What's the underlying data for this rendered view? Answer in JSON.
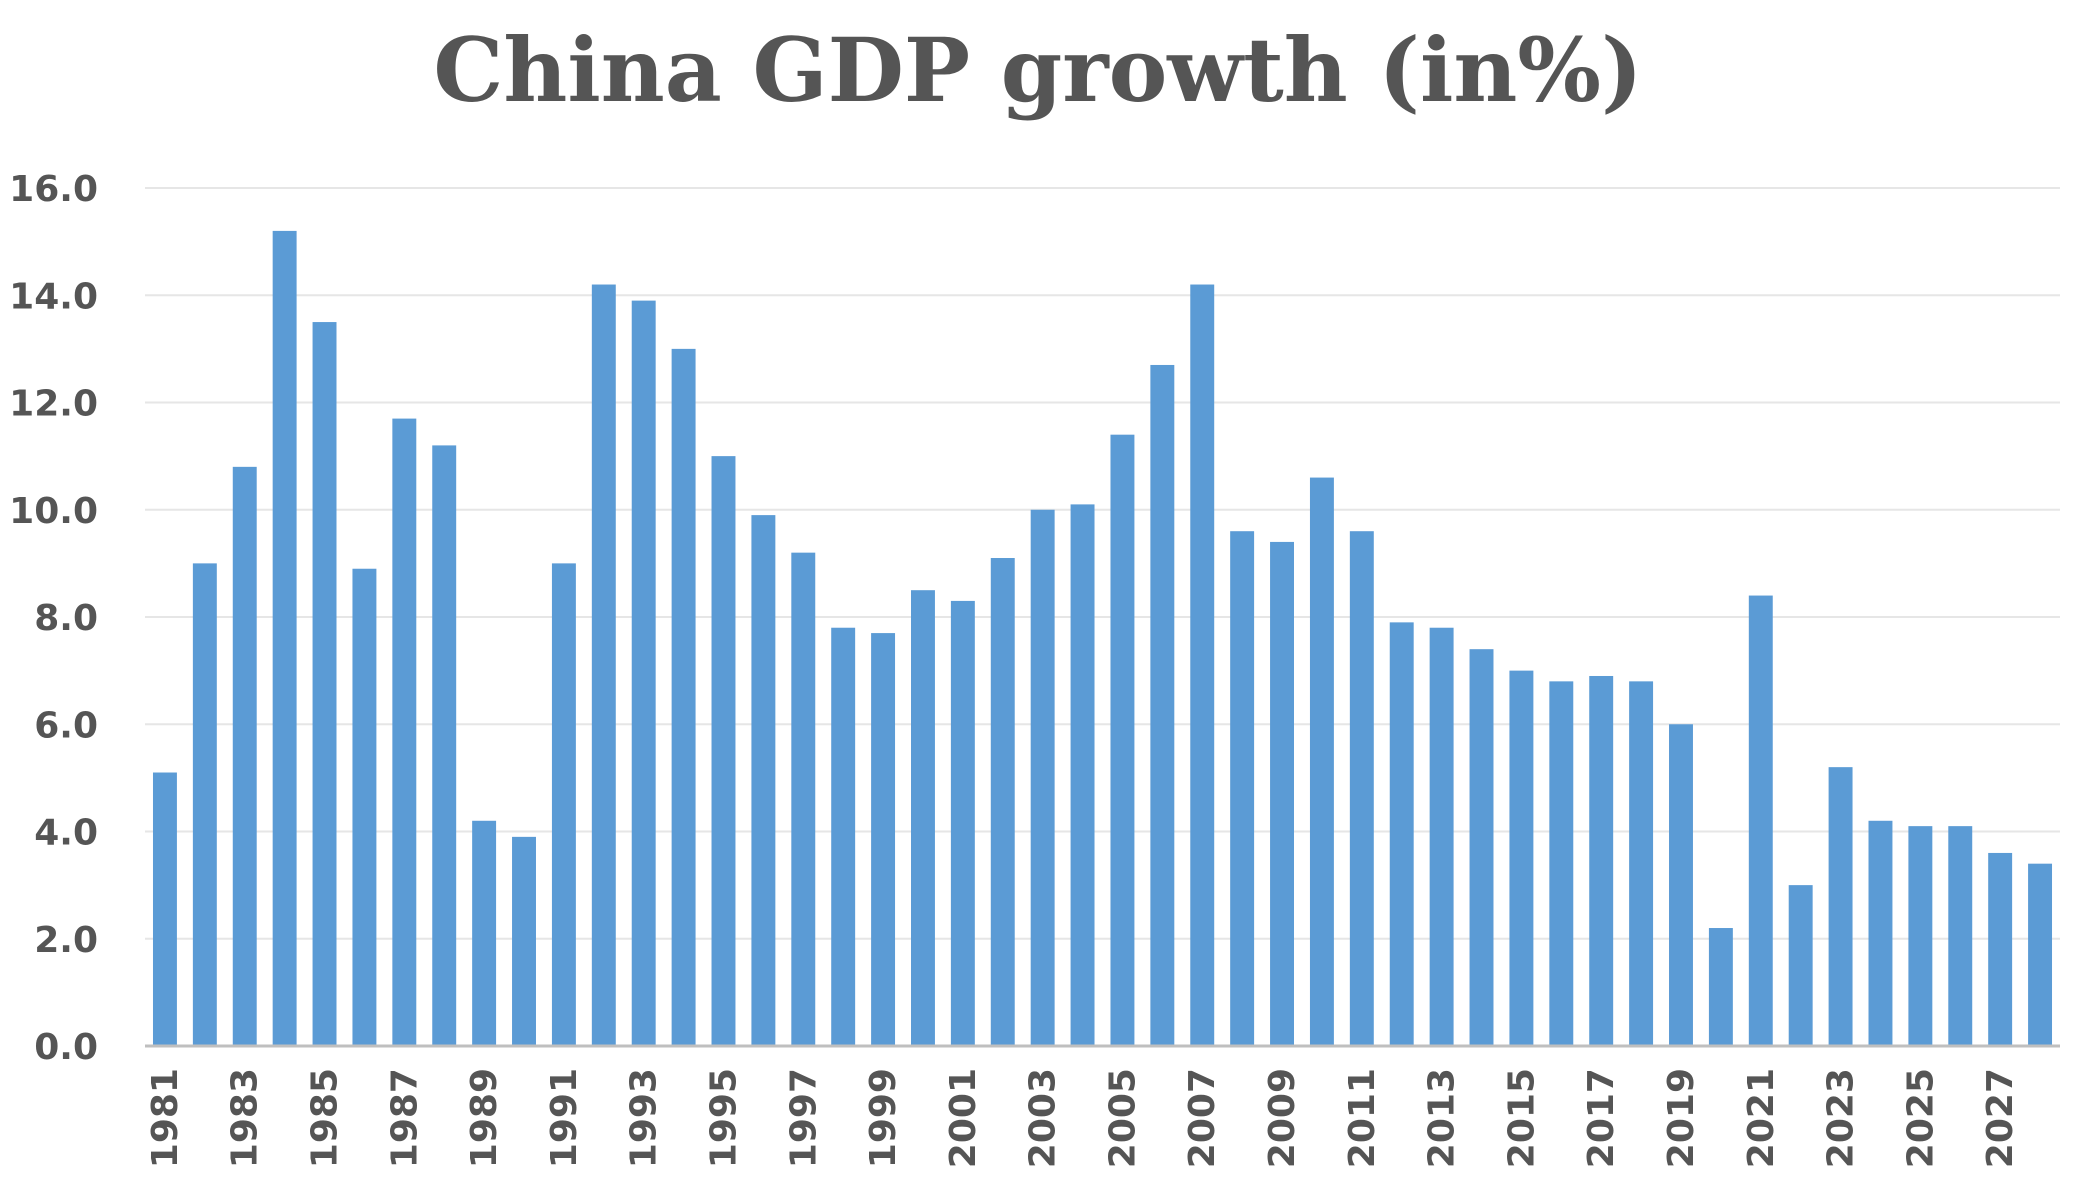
{
  "chart_data": {
    "type": "bar",
    "title": "China GDP growth (in%)",
    "xlabel": "",
    "ylabel": "",
    "ylim": [
      0,
      16
    ],
    "yticks": [
      "0.0",
      "2.0",
      "4.0",
      "6.0",
      "8.0",
      "10.0",
      "12.0",
      "14.0",
      "16.0"
    ],
    "grid": true,
    "bar_color": "#5B9BD5",
    "categories": [
      "1981",
      "1982",
      "1983",
      "1984",
      "1985",
      "1986",
      "1987",
      "1988",
      "1989",
      "1990",
      "1991",
      "1992",
      "1993",
      "1994",
      "1995",
      "1996",
      "1997",
      "1998",
      "1999",
      "2000",
      "2001",
      "2002",
      "2003",
      "2004",
      "2005",
      "2006",
      "2007",
      "2008",
      "2009",
      "2010",
      "2011",
      "2012",
      "2013",
      "2014",
      "2015",
      "2016",
      "2017",
      "2018",
      "2019",
      "2020",
      "2021",
      "2022",
      "2023",
      "2024",
      "2025",
      "2026",
      "2027",
      "2028"
    ],
    "xtick_labels": [
      "1981",
      "1983",
      "1985",
      "1987",
      "1989",
      "1991",
      "1993",
      "1995",
      "1997",
      "1999",
      "2001",
      "2003",
      "2005",
      "2007",
      "2009",
      "2011",
      "2013",
      "2015",
      "2017",
      "2019",
      "2021",
      "2023",
      "2025",
      "2027"
    ],
    "values": [
      5.1,
      9.0,
      10.8,
      15.2,
      13.5,
      8.9,
      11.7,
      11.2,
      4.2,
      3.9,
      9.0,
      14.2,
      13.9,
      13.0,
      11.0,
      9.9,
      9.2,
      7.8,
      7.7,
      8.5,
      8.3,
      9.1,
      10.0,
      10.1,
      11.4,
      12.7,
      14.2,
      9.6,
      9.4,
      10.6,
      9.6,
      7.9,
      7.8,
      7.4,
      7.0,
      6.8,
      6.9,
      6.8,
      6.0,
      2.2,
      8.4,
      3.0,
      5.2,
      4.2,
      4.1,
      4.1,
      3.6,
      3.4
    ]
  }
}
